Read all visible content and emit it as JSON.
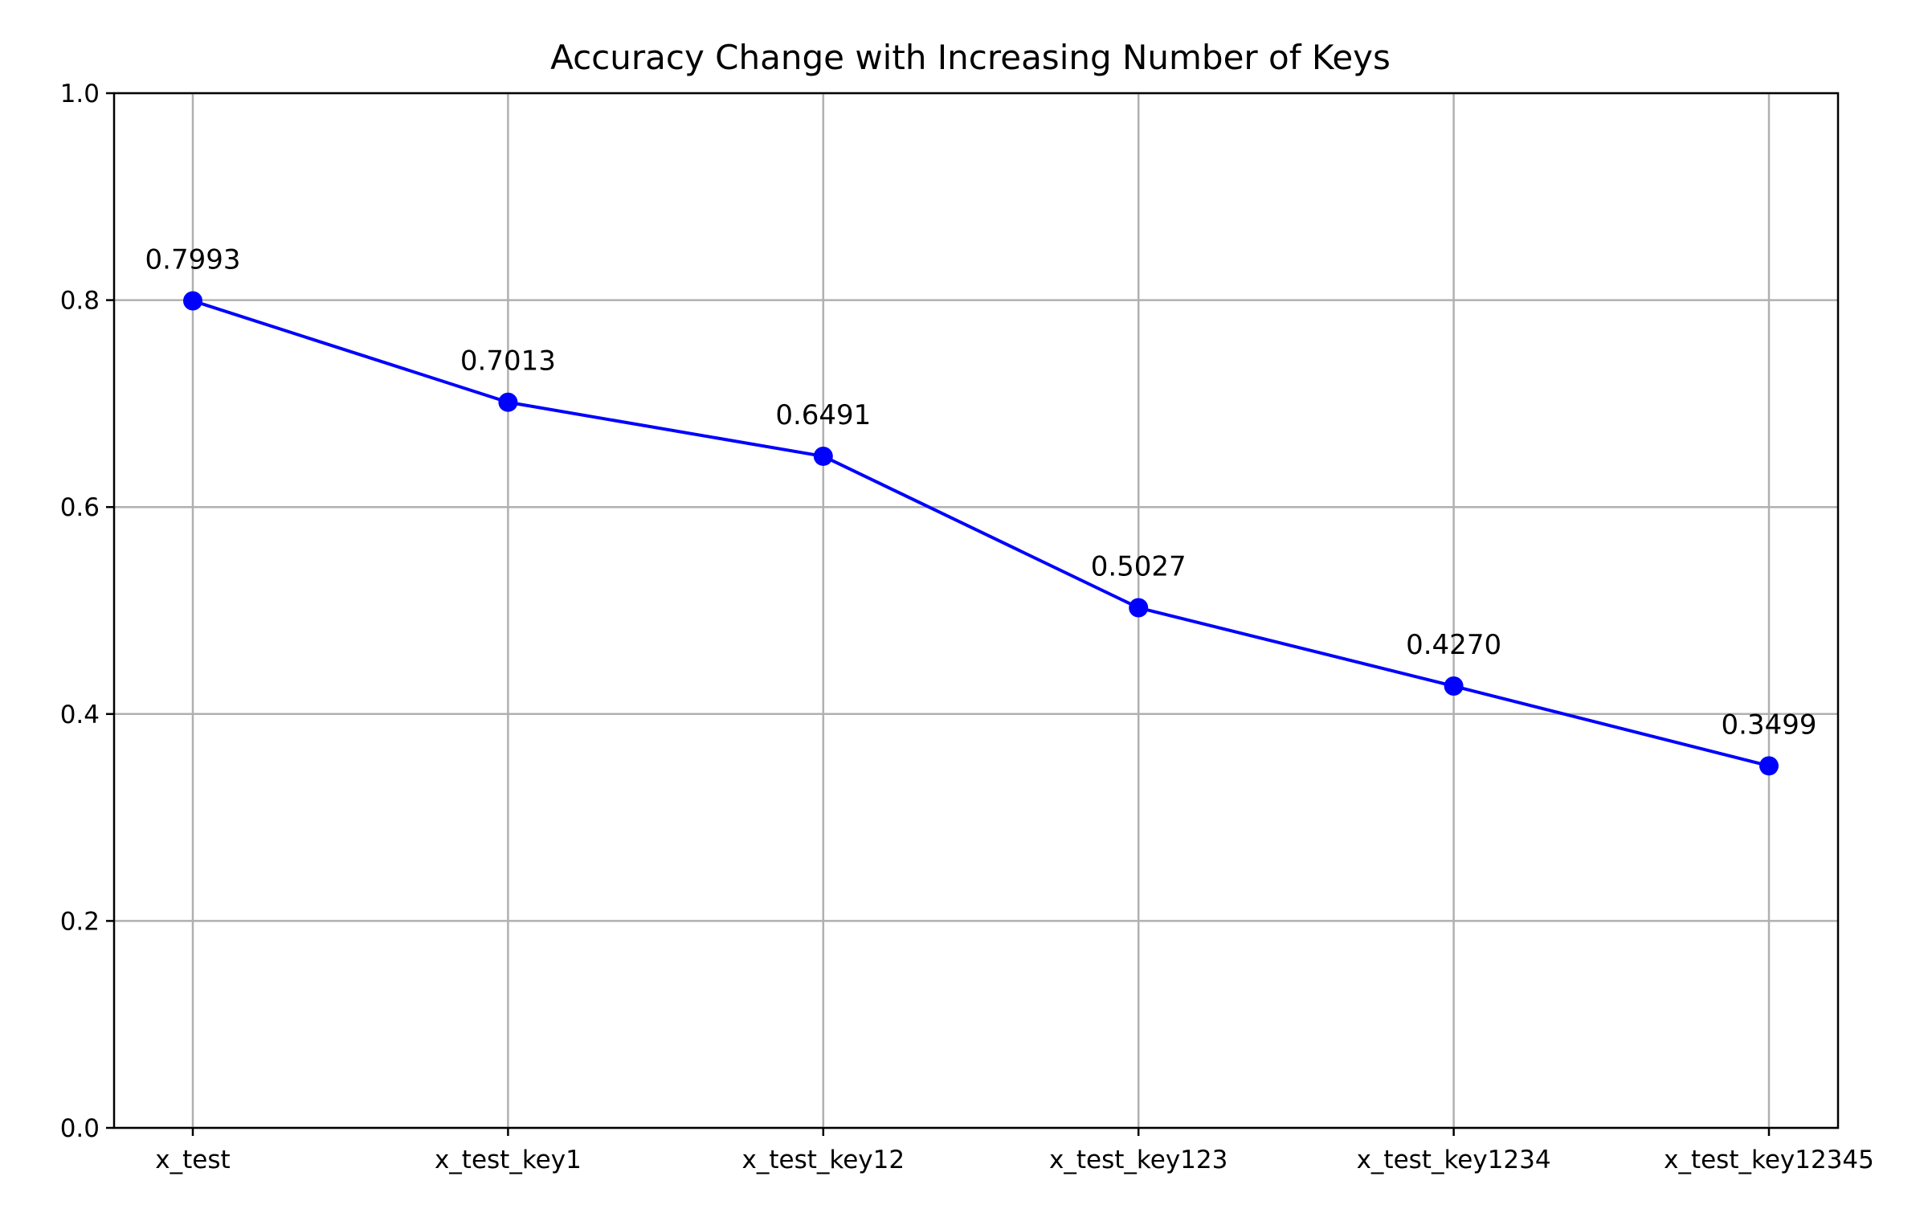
{
  "chart_data": {
    "type": "line",
    "title": "Accuracy Change with Increasing Number of Keys",
    "xlabel": "",
    "ylabel": "",
    "categories": [
      "x_test",
      "x_test_key1",
      "x_test_key12",
      "x_test_key123",
      "x_test_key1234",
      "x_test_key12345"
    ],
    "series": [
      {
        "values": [
          0.7993,
          0.7013,
          0.6491,
          0.5027,
          0.427,
          0.3499
        ],
        "data_labels": [
          "0.7993",
          "0.7013",
          "0.6491",
          "0.5027",
          "0.4270",
          "0.3499"
        ],
        "color": "#0000ff",
        "marker": "circle"
      }
    ],
    "ylim": [
      0,
      1.0
    ],
    "yticks": [
      "0.0",
      "0.2",
      "0.4",
      "0.6",
      "0.8",
      "1.0"
    ],
    "grid": true,
    "legend": "none"
  }
}
